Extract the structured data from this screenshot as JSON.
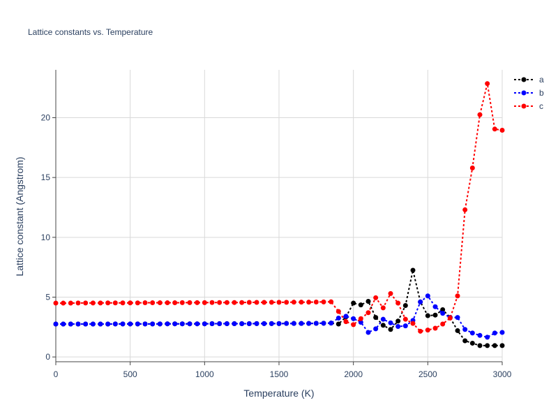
{
  "chart_data": {
    "type": "line",
    "title": "Lattice constants vs. Temperature",
    "xlabel": "Temperature (K)",
    "ylabel": "Lattice constant (Angstrom)",
    "xlim": [
      0,
      3000
    ],
    "ylim": [
      -0.4,
      24.0
    ],
    "xticks": [
      0,
      500,
      1000,
      1500,
      2000,
      2500,
      3000
    ],
    "yticks": [
      0,
      5,
      10,
      15,
      20
    ],
    "grid": true,
    "legend_position": "top-right",
    "x": [
      0,
      50,
      100,
      150,
      200,
      250,
      300,
      350,
      400,
      450,
      500,
      550,
      600,
      650,
      700,
      750,
      800,
      850,
      900,
      950,
      1000,
      1050,
      1100,
      1150,
      1200,
      1250,
      1300,
      1350,
      1400,
      1450,
      1500,
      1550,
      1600,
      1650,
      1700,
      1750,
      1800,
      1850,
      1900,
      1950,
      2000,
      2050,
      2100,
      2150,
      2200,
      2250,
      2300,
      2350,
      2400,
      2450,
      2500,
      2550,
      2600,
      2650,
      2700,
      2750,
      2800,
      2850,
      2900,
      2950,
      3000
    ],
    "series": [
      {
        "name": "a",
        "color": "#000000",
        "values": [
          2.75,
          2.75,
          2.75,
          2.75,
          2.75,
          2.75,
          2.75,
          2.75,
          2.76,
          2.76,
          2.76,
          2.76,
          2.76,
          2.76,
          2.76,
          2.77,
          2.77,
          2.77,
          2.77,
          2.77,
          2.77,
          2.78,
          2.78,
          2.78,
          2.78,
          2.78,
          2.78,
          2.79,
          2.79,
          2.79,
          2.79,
          2.8,
          2.8,
          2.8,
          2.8,
          2.81,
          2.82,
          2.83,
          2.75,
          3.35,
          4.5,
          4.35,
          4.65,
          3.3,
          2.65,
          2.3,
          3.0,
          4.3,
          7.25,
          4.6,
          3.45,
          3.5,
          3.95,
          3.3,
          2.2,
          1.35,
          1.15,
          0.95,
          0.95,
          0.95,
          0.95
        ]
      },
      {
        "name": "b",
        "color": "#0000ff",
        "values": [
          2.75,
          2.75,
          2.75,
          2.75,
          2.75,
          2.75,
          2.75,
          2.75,
          2.76,
          2.76,
          2.76,
          2.76,
          2.76,
          2.76,
          2.76,
          2.77,
          2.77,
          2.77,
          2.77,
          2.77,
          2.77,
          2.78,
          2.78,
          2.78,
          2.78,
          2.78,
          2.78,
          2.79,
          2.79,
          2.79,
          2.79,
          2.8,
          2.8,
          2.8,
          2.8,
          2.81,
          2.82,
          2.83,
          3.25,
          3.4,
          3.2,
          2.9,
          2.05,
          2.35,
          3.15,
          2.85,
          2.55,
          2.6,
          3.05,
          4.6,
          5.1,
          4.2,
          3.65,
          3.3,
          3.3,
          2.3,
          2.0,
          1.8,
          1.65,
          2.0,
          2.05
        ]
      },
      {
        "name": "c",
        "color": "#ff0000",
        "values": [
          4.5,
          4.5,
          4.5,
          4.51,
          4.51,
          4.51,
          4.51,
          4.52,
          4.52,
          4.52,
          4.52,
          4.52,
          4.53,
          4.53,
          4.53,
          4.53,
          4.53,
          4.54,
          4.54,
          4.54,
          4.54,
          4.55,
          4.55,
          4.55,
          4.55,
          4.55,
          4.56,
          4.56,
          4.56,
          4.57,
          4.57,
          4.57,
          4.58,
          4.58,
          4.58,
          4.59,
          4.6,
          4.61,
          3.8,
          2.95,
          2.7,
          3.2,
          3.7,
          4.95,
          4.1,
          5.3,
          4.5,
          3.15,
          2.8,
          2.15,
          2.25,
          2.4,
          2.75,
          3.25,
          5.1,
          12.3,
          15.8,
          20.25,
          22.85,
          19.05,
          18.95
        ]
      }
    ]
  }
}
